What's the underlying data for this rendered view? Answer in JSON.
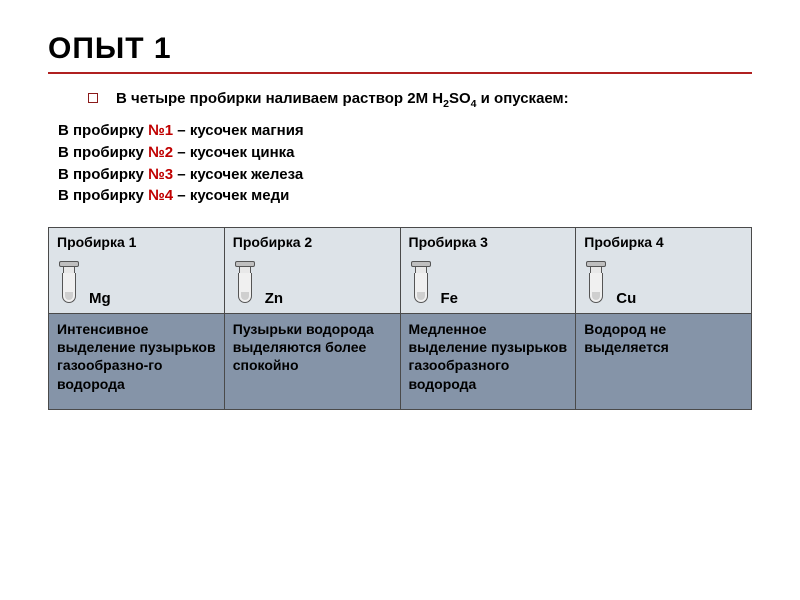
{
  "title": "ОПЫТ 1",
  "intro": {
    "prefix": "В четыре пробирки наливаем раствор 2М H",
    "sub1": "2",
    "mid": "SO",
    "sub2": "4",
    "suffix": " и опускаем:"
  },
  "lines": [
    {
      "prefix": "В пробирку ",
      "num": "№1",
      "rest": " – кусочек магния"
    },
    {
      "prefix": "В пробирку ",
      "num": "№2",
      "rest": " – кусочек цинка"
    },
    {
      "prefix": "В пробирку ",
      "num": "№3",
      "rest": " – кусочек железа"
    },
    {
      "prefix": "В пробирку ",
      "num": "№4",
      "rest": " – кусочек меди"
    }
  ],
  "table": {
    "headers": [
      "Пробирка 1",
      "Пробирка 2",
      "Пробирка 3",
      "Пробирка 4"
    ],
    "elements": [
      "Mg",
      "Zn",
      "Fe",
      "Cu"
    ],
    "observations": [
      "Интенсивное выделение пузырьков газообразно-го водорода",
      "Пузырьки водорода выделяются более спокойно",
      "Медленное выделение пузырьков газообразного водорода",
      "Водород не выделяется"
    ]
  },
  "colors": {
    "accent_red": "#c00000",
    "rule_red": "#b02020",
    "header_bg": "#dde3e8",
    "obs_bg": "#8594a8",
    "border": "#4a4a4a"
  }
}
